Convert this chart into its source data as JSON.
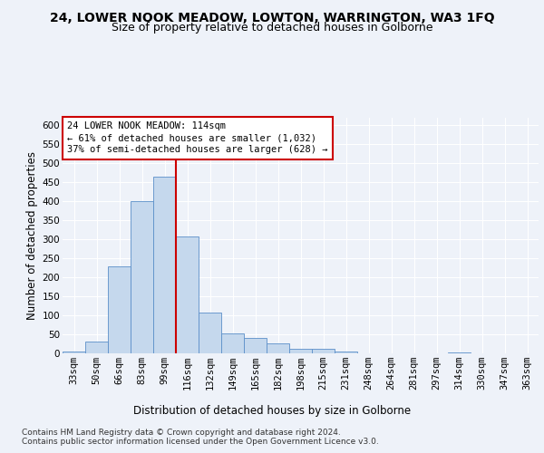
{
  "title_line1": "24, LOWER NOOK MEADOW, LOWTON, WARRINGTON, WA3 1FQ",
  "title_line2": "Size of property relative to detached houses in Golborne",
  "xlabel": "Distribution of detached houses by size in Golborne",
  "ylabel": "Number of detached properties",
  "categories": [
    "33sqm",
    "50sqm",
    "66sqm",
    "83sqm",
    "99sqm",
    "116sqm",
    "132sqm",
    "149sqm",
    "165sqm",
    "182sqm",
    "198sqm",
    "215sqm",
    "231sqm",
    "248sqm",
    "264sqm",
    "281sqm",
    "297sqm",
    "314sqm",
    "330sqm",
    "347sqm",
    "363sqm"
  ],
  "values": [
    5,
    30,
    228,
    400,
    465,
    308,
    108,
    53,
    40,
    26,
    12,
    11,
    5,
    0,
    0,
    0,
    0,
    3,
    0,
    0,
    0
  ],
  "bar_color": "#c5d8ed",
  "bar_edge_color": "#5b8fc9",
  "reference_line_color": "#cc0000",
  "annotation_text": "24 LOWER NOOK MEADOW: 114sqm\n← 61% of detached houses are smaller (1,032)\n37% of semi-detached houses are larger (628) →",
  "annotation_box_color": "#ffffff",
  "annotation_box_edge_color": "#cc0000",
  "ylim": [
    0,
    620
  ],
  "yticks": [
    0,
    50,
    100,
    150,
    200,
    250,
    300,
    350,
    400,
    450,
    500,
    550,
    600
  ],
  "background_color": "#eef2f9",
  "grid_color": "#ffffff",
  "footer_text": "Contains HM Land Registry data © Crown copyright and database right 2024.\nContains public sector information licensed under the Open Government Licence v3.0.",
  "title_fontsize": 10,
  "subtitle_fontsize": 9,
  "axis_label_fontsize": 8.5,
  "tick_fontsize": 7.5,
  "annotation_fontsize": 7.5,
  "footer_fontsize": 6.5
}
